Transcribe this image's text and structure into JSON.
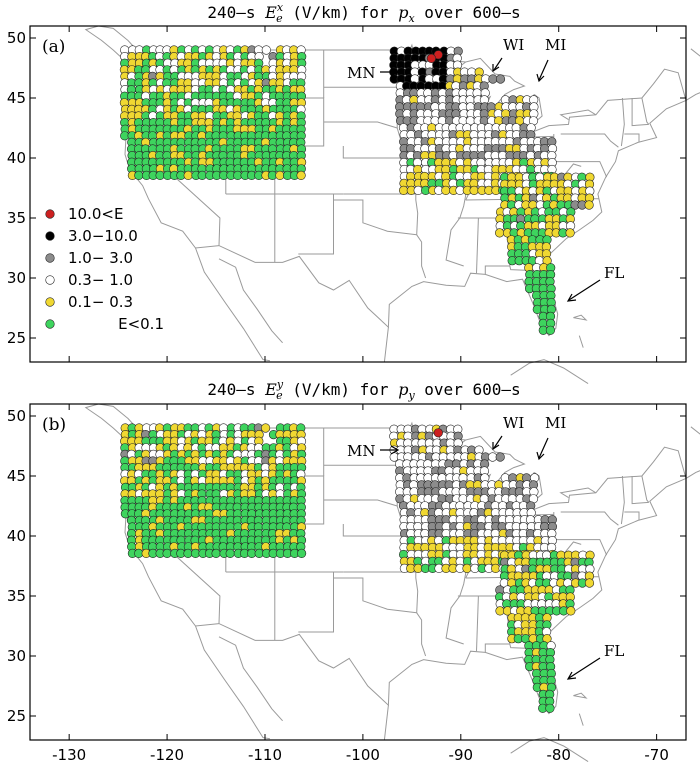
{
  "panels": [
    {
      "id": "a",
      "label": "(a)",
      "title": "240-s E_e^x (V/km) for p_x over 600-s",
      "title_parts": {
        "pre": "240–s ",
        "sym": "E",
        "sub": "e",
        "sup": "x",
        "mid": " (V/km) for ",
        "p": "p",
        "psub": "x",
        "post": " over 600–s"
      }
    },
    {
      "id": "b",
      "label": "(b)",
      "title": "240-s E_e^y (V/km) for p_y over 600-s",
      "title_parts": {
        "pre": "240–s ",
        "sym": "E",
        "sub": "e",
        "sup": "y",
        "mid": " (V/km) for ",
        "p": "p",
        "psub": "y",
        "post": " over 600–s"
      }
    }
  ],
  "state_labels": {
    "mn": "MN",
    "wi": "WI",
    "mi": "MI",
    "fl": "FL"
  },
  "legend": [
    {
      "label": "10.0<E",
      "color": "#cc2020"
    },
    {
      "label": "3.0−10.0",
      "color": "#000000"
    },
    {
      "label": "1.0− 3.0",
      "color": "#8c8c8c"
    },
    {
      "label": "0.3− 1.0",
      "color": "#ffffff"
    },
    {
      "label": "0.1− 0.3",
      "color": "#f0d832"
    },
    {
      "label": "E<0.1",
      "color": "#3ed45e"
    }
  ],
  "axes": {
    "x_ticks": [
      -130,
      -120,
      -110,
      -100,
      -90,
      -80,
      -70
    ],
    "y_ticks": [
      25,
      30,
      35,
      40,
      45,
      50
    ],
    "xlim": [
      -134,
      -67
    ],
    "ylim": [
      23,
      51
    ]
  }
}
